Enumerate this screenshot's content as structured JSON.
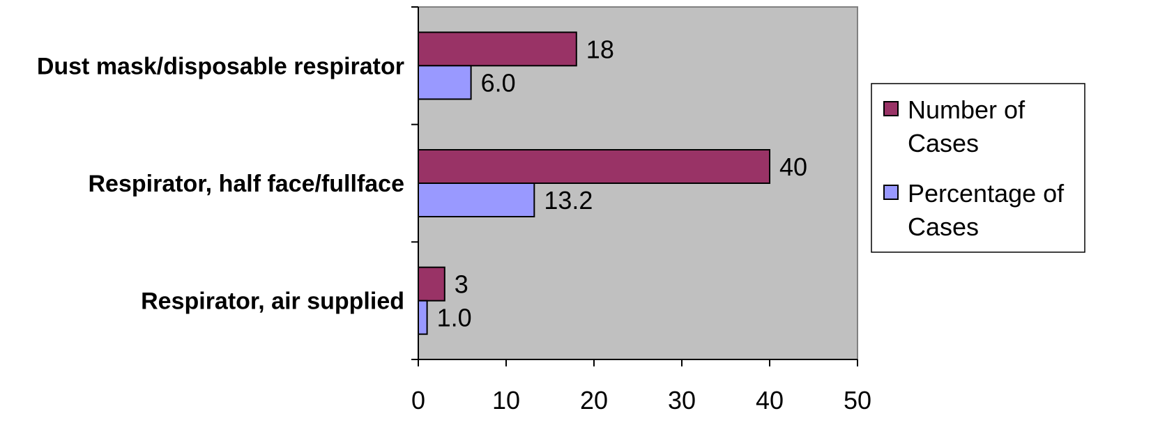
{
  "chart_data": {
    "type": "bar",
    "orientation": "horizontal",
    "categories": [
      "Dust mask/disposable respirator",
      "Respirator, half face/fullface",
      "Respirator, air supplied"
    ],
    "series": [
      {
        "name": "Number of Cases",
        "values": [
          18,
          40,
          3
        ],
        "labels": [
          "18",
          "40",
          "3"
        ],
        "color": "#993366"
      },
      {
        "name": "Percentage of Cases",
        "values": [
          6.0,
          13.2,
          1.0
        ],
        "labels": [
          "6.0",
          "13.2",
          "1.0"
        ],
        "color": "#9999FF"
      }
    ],
    "xlim": [
      0,
      50
    ],
    "xticks": [
      "0",
      "10",
      "20",
      "30",
      "40",
      "50"
    ],
    "title": "",
    "xlabel": "",
    "ylabel": "",
    "grid": false,
    "legend": {
      "position": "right",
      "entries": [
        {
          "lines": [
            "Number of",
            "Cases"
          ]
        },
        {
          "lines": [
            "Percentage of",
            "Cases"
          ]
        }
      ]
    },
    "plot_background": "#C0C0C0"
  }
}
